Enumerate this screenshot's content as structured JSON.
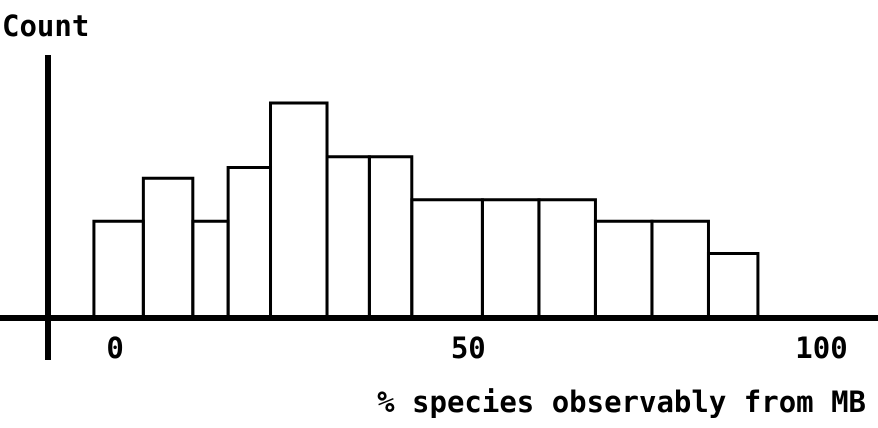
{
  "chart_data": {
    "type": "histogram",
    "y_label": "Count",
    "x_label": "% species observably from MB",
    "bins": [
      -3,
      4,
      11,
      16,
      22,
      30,
      36,
      42,
      52,
      60,
      68,
      76,
      84,
      91
    ],
    "values": [
      4.5,
      6.5,
      4.5,
      7,
      10,
      7.5,
      7.5,
      5.5,
      5.5,
      5.5,
      4.5,
      4.5,
      3
    ],
    "color": "#000000",
    "xlim": [
      -9.5,
      108
    ],
    "xticks": [
      0,
      50,
      100
    ],
    "ylim": [
      0,
      12
    ],
    "grid": false
  }
}
